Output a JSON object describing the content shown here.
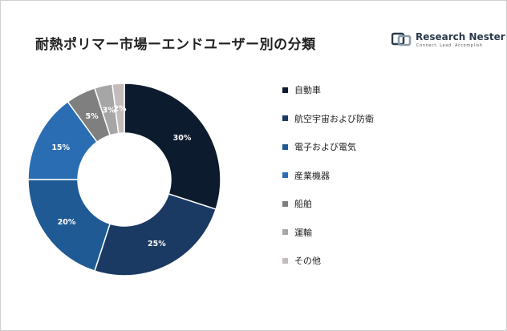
{
  "title": "耐熱ポリマー市場ーエンドユーザー別の分類",
  "logo": {
    "name_part1": "Research ",
    "name_part2": "Nester",
    "tagline": "Connect. Lead. Accomplish"
  },
  "chart_data": {
    "type": "pie",
    "donut": true,
    "categories": [
      "自動車",
      "航空宇宙および防衛",
      "電子および電気",
      "産業機器",
      "船舶",
      "運輸",
      "その他"
    ],
    "values": [
      30,
      25,
      20,
      15,
      5,
      3,
      2
    ],
    "data_labels": [
      "30%",
      "25%",
      "20%",
      "15%",
      "5%",
      "3%",
      "2%"
    ],
    "colors": [
      "#0d1b2e",
      "#1b3a63",
      "#1f5a94",
      "#2a6db3",
      "#7f7f7f",
      "#a6a6a6",
      "#c4bcbc"
    ],
    "label_colors": [
      "#ffffff",
      "#ffffff",
      "#ffffff",
      "#ffffff",
      "#ffffff",
      "#ffffff",
      "#ffffff"
    ],
    "legend_position": "right"
  }
}
